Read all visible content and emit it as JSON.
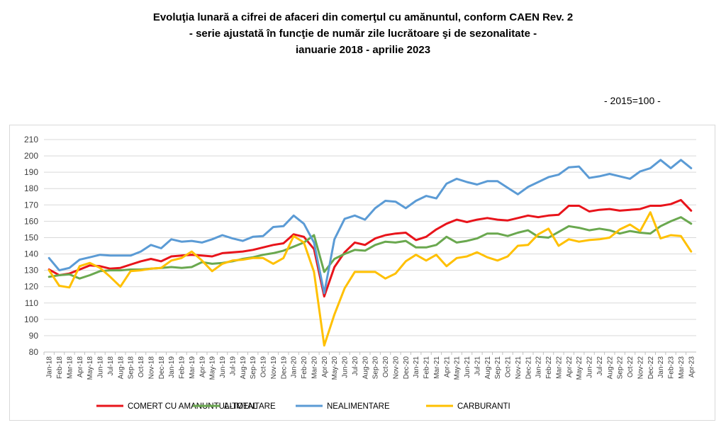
{
  "header": {
    "title_line1": "Evoluţia lunară a cifrei de afaceri din comerţul cu amănuntul, conform CAEN Rev. 2",
    "title_line2": "- serie ajustată în funcţie de număr zile lucrătoare şi de sezonalitate -",
    "title_line3": "ianuarie 2018 - aprilie 2023",
    "base_note": "- 2015=100 -"
  },
  "chart_data": {
    "type": "line",
    "title": "Evoluţia lunară a cifrei de afaceri din comerţul cu amănuntul, conform CAEN Rev. 2",
    "subtitle": "- serie ajustată în funcţie de număr zile lucrătoare şi de sezonalitate - ianuarie 2018 - aprilie 2023",
    "xlabel": "",
    "ylabel": "",
    "ylim": [
      80,
      210
    ],
    "yticks": [
      80,
      90,
      100,
      110,
      120,
      130,
      140,
      150,
      160,
      170,
      180,
      190,
      200,
      210
    ],
    "grid": "horizontal",
    "legend_position": "bottom",
    "categories": [
      "Jan-18",
      "Feb-18",
      "Mar-18",
      "Apr-18",
      "May-18",
      "Jun-18",
      "Jul-18",
      "Aug-18",
      "Sep-18",
      "Oct-18",
      "Nov-18",
      "Dec-18",
      "Jan-19",
      "Feb-19",
      "Mar-19",
      "Apr-19",
      "May-19",
      "Jun-19",
      "Jul-19",
      "Aug-19",
      "Sep-19",
      "Oct-19",
      "Nov-19",
      "Dec-19",
      "Jan-20",
      "Feb-20",
      "Mar-20",
      "Apr-20",
      "May-20",
      "Jun-20",
      "Jul-20",
      "Aug-20",
      "Sep-20",
      "Oct-20",
      "Nov-20",
      "Dec-20",
      "Jan-21",
      "Feb-21",
      "Mar-21",
      "Apr-21",
      "May-21",
      "Jun-21",
      "Jul-21",
      "Aug-21",
      "Sep-21",
      "Oct-21",
      "Nov-21",
      "Dec-21",
      "Jan-22",
      "Feb-22",
      "Mar-22",
      "Apr-22",
      "May-22",
      "Jun-22",
      "Jul-22",
      "Aug-22",
      "Sep-22",
      "Oct-22",
      "Nov-22",
      "Dec-22",
      "Jan-23",
      "Feb-23",
      "Mar-23",
      "Apr-23"
    ],
    "series": [
      {
        "name": "COMERT CU AMANUNTUL-TOTAL",
        "color": "#e8141b",
        "values": [
          130.5,
          127,
          128,
          130.5,
          133,
          132.5,
          131,
          131.5,
          133.5,
          135.5,
          137,
          135.5,
          138.5,
          139,
          139.5,
          139,
          138.5,
          140.5,
          141,
          141.5,
          142.5,
          144,
          145.5,
          146.5,
          152,
          150.5,
          143,
          114,
          132,
          141,
          147,
          145.5,
          149.5,
          151.5,
          152.5,
          153,
          148.5,
          150.5,
          155,
          158.5,
          161,
          159.5,
          161,
          162,
          161,
          160.5,
          162,
          163.5,
          162.5,
          163.5,
          164,
          169.5,
          169.5,
          166,
          167,
          167.5,
          166.5,
          167,
          167.5,
          169.5,
          169.5,
          170.5,
          173,
          166.5
        ]
      },
      {
        "name": "ALIMENTARE",
        "color": "#6aa84f",
        "values": [
          126,
          127,
          127.5,
          125,
          127,
          129.5,
          130,
          130,
          130.5,
          130.5,
          131,
          131.5,
          132,
          131.5,
          132,
          135,
          134,
          134.5,
          135.5,
          137,
          138,
          139.5,
          140.5,
          142,
          144.5,
          147,
          151.5,
          129,
          137,
          140,
          142.5,
          142,
          145.5,
          147.5,
          147,
          148,
          144,
          144,
          145.5,
          150.5,
          147,
          148,
          149.5,
          152.5,
          152.5,
          151,
          153,
          154.5,
          150.5,
          150,
          153.5,
          157,
          156,
          154.5,
          155.5,
          154.5,
          152.5,
          154,
          153,
          152.5,
          157,
          160,
          162.5,
          158.5
        ]
      },
      {
        "name": "NEALIMENTARE",
        "color": "#5b9bd5",
        "values": [
          137.5,
          130,
          131.5,
          136.5,
          138,
          139.5,
          139,
          139,
          139,
          141.5,
          145.5,
          143.5,
          149,
          147.5,
          148,
          147,
          149,
          151.5,
          149.5,
          148,
          150.5,
          151,
          156.5,
          157,
          163.5,
          158.5,
          147,
          116,
          149,
          161.5,
          163.5,
          161,
          168,
          172.5,
          172,
          168,
          172.5,
          175.5,
          174,
          183,
          186,
          184,
          182.5,
          184.5,
          184.5,
          180.5,
          176.5,
          181,
          184,
          187,
          188.5,
          193,
          193.5,
          186.5,
          187.5,
          189,
          187.5,
          186,
          190.5,
          192.5,
          197.5,
          192.5,
          197.5,
          192.5
        ]
      },
      {
        "name": "CARBURANTI",
        "color": "#ffc000",
        "values": [
          130,
          120.5,
          119.5,
          132.5,
          134.5,
          131.5,
          126,
          120,
          129.5,
          130,
          131,
          131.5,
          136,
          137.5,
          141.5,
          136,
          129.5,
          134,
          136,
          136.5,
          137.5,
          137.5,
          134,
          137.5,
          151,
          147,
          129,
          84,
          103,
          119,
          129,
          129,
          129,
          125,
          128,
          135.5,
          139.5,
          136,
          139.5,
          132.5,
          137.5,
          138.5,
          141,
          138,
          136,
          138.5,
          145,
          145.5,
          152,
          155.5,
          145,
          149,
          147.5,
          148.5,
          149,
          150,
          155,
          158,
          154,
          165.5,
          149.5,
          151.5,
          151,
          141.5
        ]
      }
    ]
  }
}
